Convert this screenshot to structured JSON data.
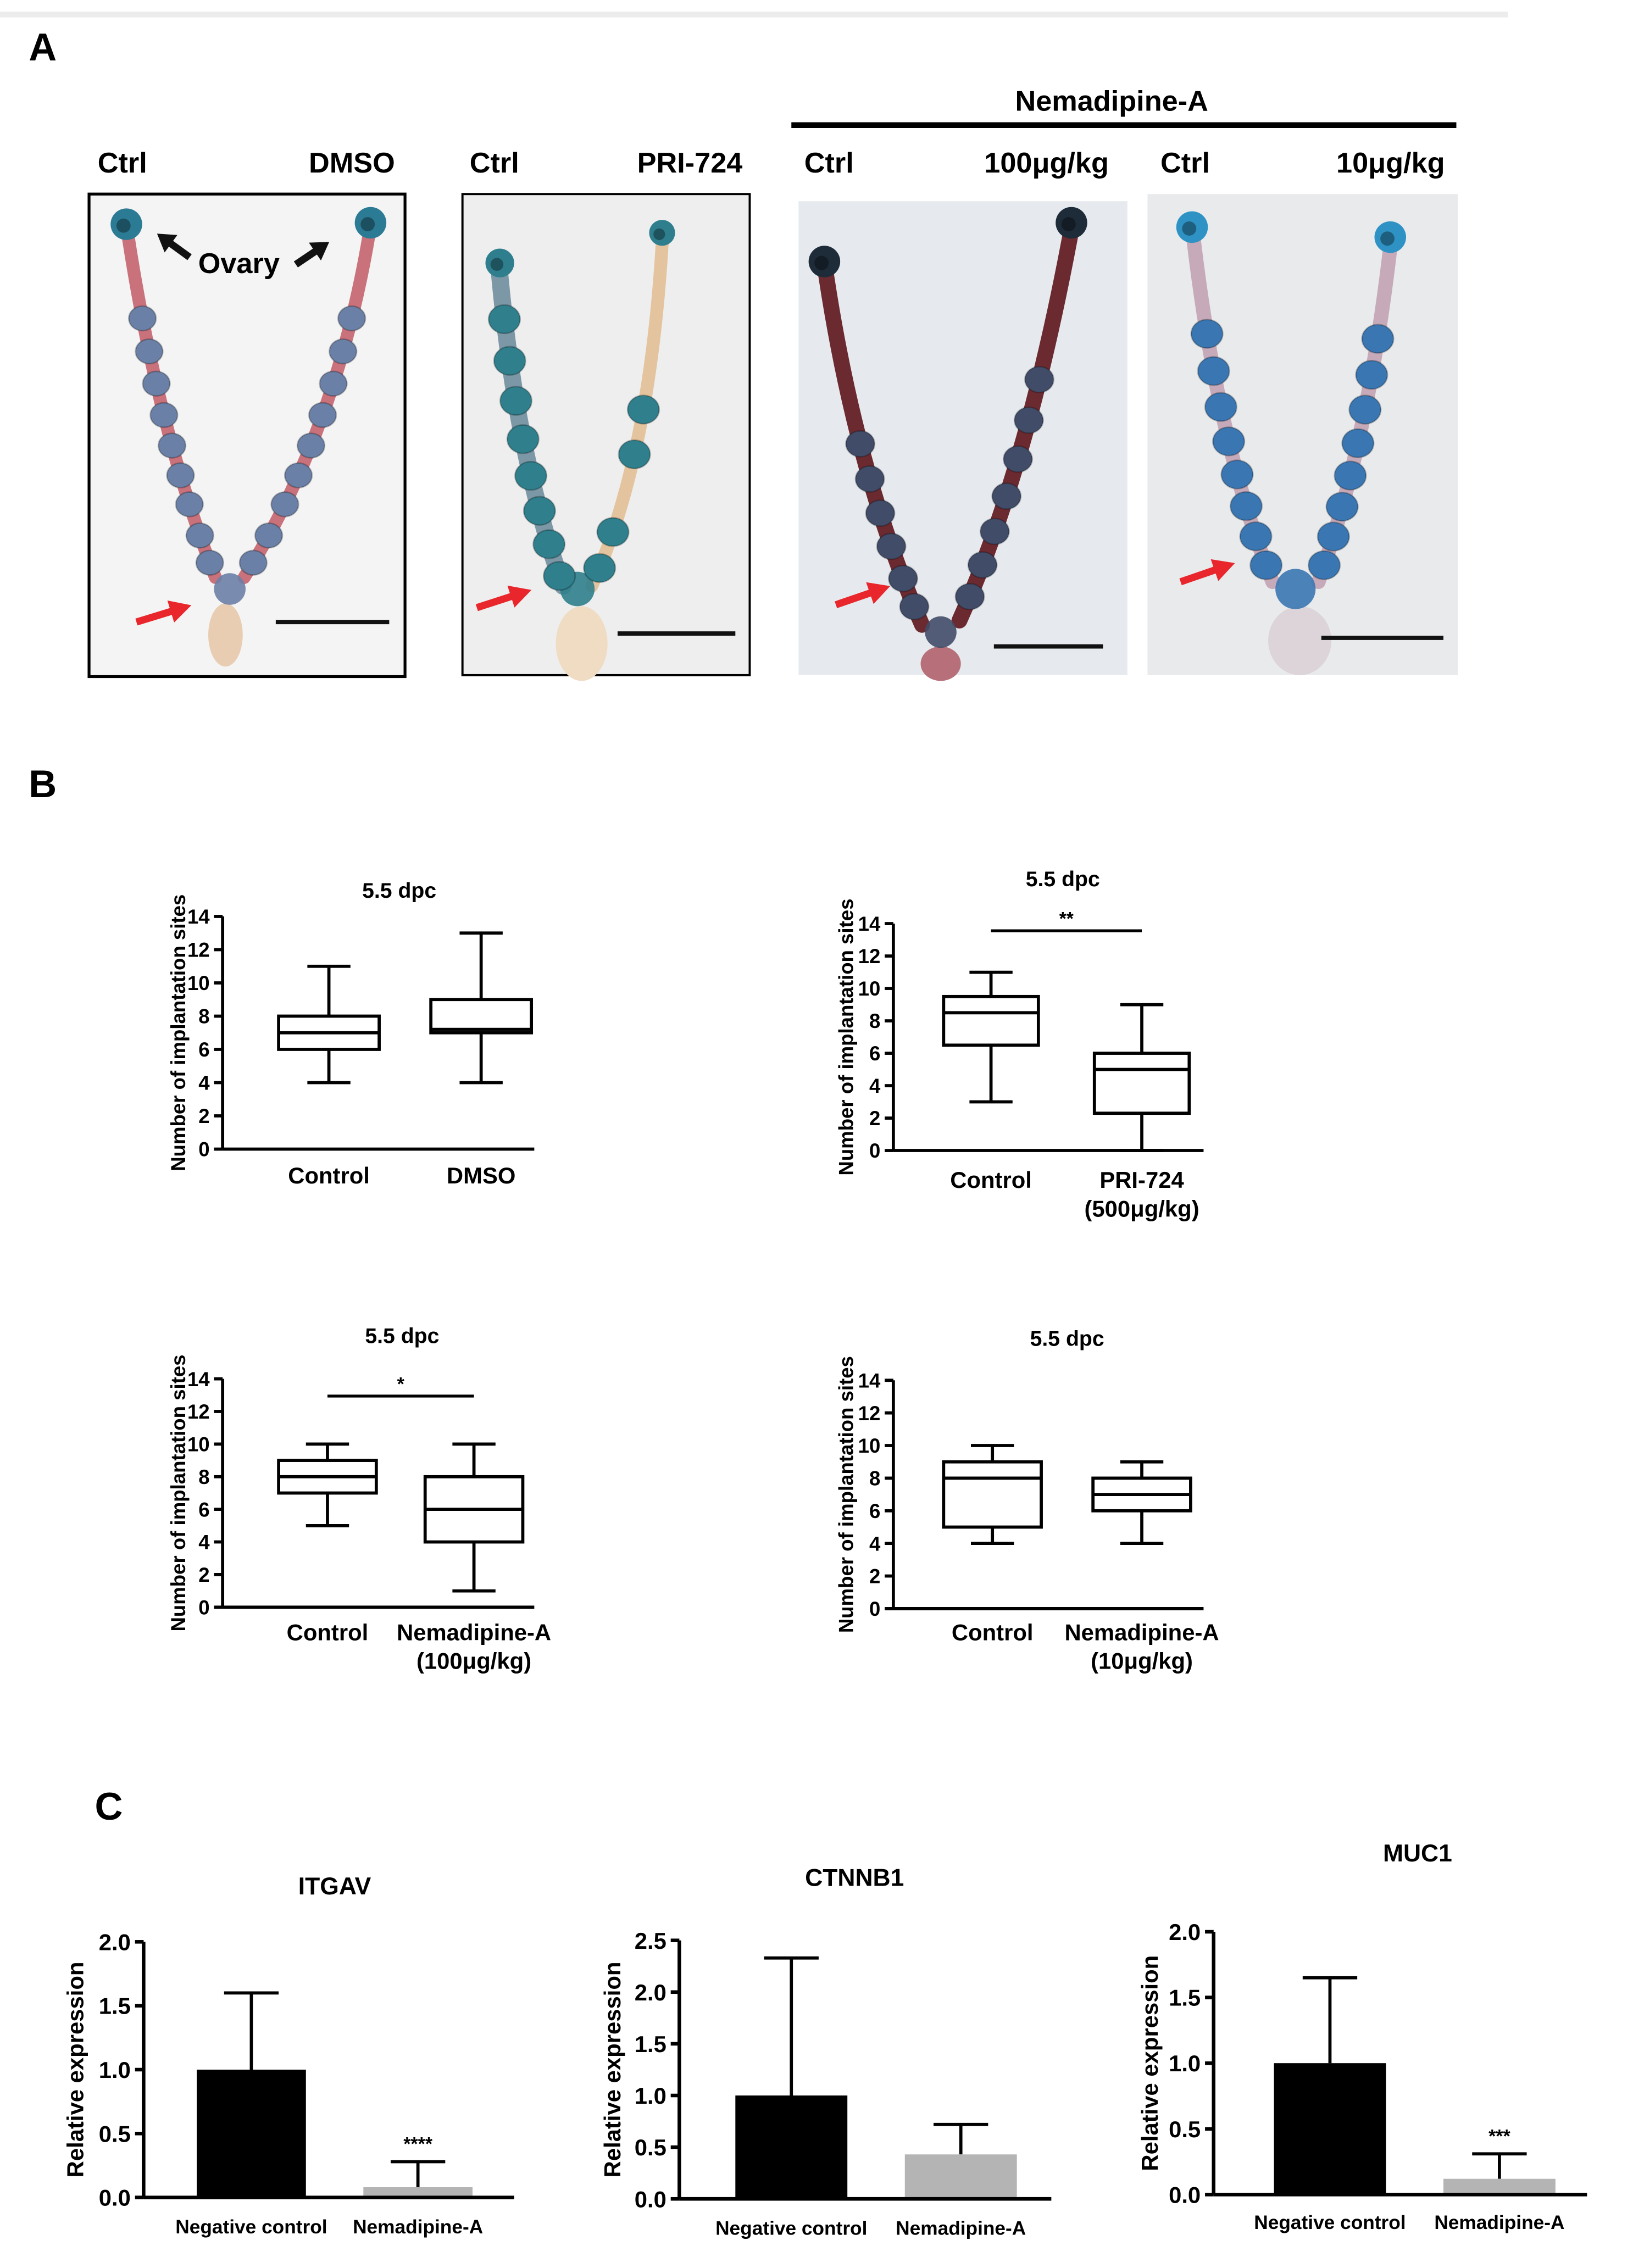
{
  "panels": {
    "a": {
      "letter": "A",
      "group_label": "Nemadipine-A",
      "photos": [
        {
          "left_label": "Ctrl",
          "right_label": "DMSO",
          "annotation": "Ovary"
        },
        {
          "left_label": "Ctrl",
          "right_label": "PRI-724"
        },
        {
          "left_label": "Ctrl",
          "right_label": "100μg/kg"
        },
        {
          "left_label": "Ctrl",
          "right_label": "10μg/kg"
        }
      ]
    },
    "b": {
      "letter": "B"
    },
    "c": {
      "letter": "C"
    }
  },
  "icons": {
    "ovary_pointer": "arrow-icon",
    "implantation_pointer": "red-arrow-icon"
  },
  "colors": {
    "pointer_arrow": "#e8262b",
    "control_bar": "#000000",
    "treatment_bar": "#b4b4b4"
  },
  "chart_data": [
    {
      "type": "box",
      "title": "5.5 dpc",
      "ylabel": "Number of implantation sites",
      "ylim": [
        0,
        14
      ],
      "yticks": [
        "0",
        "2",
        "4",
        "6",
        "8",
        "10",
        "12",
        "14"
      ],
      "categories": [
        [
          "Control"
        ],
        [
          "DMSO"
        ]
      ],
      "boxes": [
        {
          "min": 4,
          "q1": 6,
          "median": 7,
          "q3": 8,
          "max": 11
        },
        {
          "min": 4,
          "q1": 7,
          "median": 7.2,
          "q3": 9,
          "max": 13
        }
      ],
      "significance": null,
      "grid": false
    },
    {
      "type": "box",
      "title": "5.5 dpc",
      "ylabel": "Number of implantation sites",
      "ylim": [
        0,
        14
      ],
      "yticks": [
        "0",
        "2",
        "4",
        "6",
        "8",
        "10",
        "12",
        "14"
      ],
      "categories": [
        [
          "Control"
        ],
        [
          "PRI-724",
          "(500μg/kg)"
        ]
      ],
      "boxes": [
        {
          "min": 3,
          "q1": 6.5,
          "median": 8.5,
          "q3": 9.5,
          "max": 11
        },
        {
          "min": 0,
          "q1": 2.3,
          "median": 5,
          "q3": 6,
          "max": 9
        }
      ],
      "significance": {
        "label": "**",
        "between": [
          0,
          1
        ]
      },
      "grid": false
    },
    {
      "type": "box",
      "title": "5.5 dpc",
      "ylabel": "Number of implantation sites",
      "ylim": [
        0,
        14
      ],
      "yticks": [
        "0",
        "2",
        "4",
        "6",
        "8",
        "10",
        "12",
        "14"
      ],
      "categories": [
        [
          "Control"
        ],
        [
          "Nemadipine-A",
          "(100μg/kg)"
        ]
      ],
      "boxes": [
        {
          "min": 5,
          "q1": 7,
          "median": 8,
          "q3": 9,
          "max": 10
        },
        {
          "min": 1,
          "q1": 4,
          "median": 6,
          "q3": 8,
          "max": 10
        }
      ],
      "significance": {
        "label": "*",
        "between": [
          0,
          1
        ]
      },
      "grid": false
    },
    {
      "type": "box",
      "title": "5.5 dpc",
      "ylabel": "Number of implantation sites",
      "ylim": [
        0,
        14
      ],
      "yticks": [
        "0",
        "2",
        "4",
        "6",
        "8",
        "10",
        "12",
        "14"
      ],
      "categories": [
        [
          "Control"
        ],
        [
          "Nemadipine-A",
          "(10μg/kg)"
        ]
      ],
      "boxes": [
        {
          "min": 4,
          "q1": 5,
          "median": 8,
          "q3": 9,
          "max": 10
        },
        {
          "min": 4,
          "q1": 6,
          "median": 7,
          "q3": 8,
          "max": 9
        }
      ],
      "significance": null,
      "grid": false
    },
    {
      "type": "bar",
      "title": "ITGAV",
      "ylabel": "Relative expression",
      "ylim": [
        0,
        2.0
      ],
      "yticks": [
        "0.0",
        "0.5",
        "1.0",
        "1.5",
        "2.0"
      ],
      "categories": [
        "Negative control",
        "Nemadipine-A"
      ],
      "values": [
        1.0,
        0.08
      ],
      "error_upper": [
        0.6,
        0.2
      ],
      "significance": [
        null,
        "****"
      ],
      "grid": false
    },
    {
      "type": "bar",
      "title": "CTNNB1",
      "ylabel": "Relative expression",
      "ylim": [
        0,
        2.5
      ],
      "yticks": [
        "0.0",
        "0.5",
        "1.0",
        "1.5",
        "2.0",
        "2.5"
      ],
      "categories": [
        "Negative control",
        "Nemadipine-A"
      ],
      "values": [
        1.0,
        0.43
      ],
      "error_upper": [
        1.33,
        0.29
      ],
      "significance": [
        null,
        null
      ],
      "grid": false
    },
    {
      "type": "bar",
      "title": "MUC1",
      "ylabel": "Relative expression",
      "ylim": [
        0,
        2.0
      ],
      "yticks": [
        "0.0",
        "0.5",
        "1.0",
        "1.5",
        "2.0"
      ],
      "categories": [
        "Negative control",
        "Nemadipine-A"
      ],
      "values": [
        1.0,
        0.12
      ],
      "error_upper": [
        0.65,
        0.19
      ],
      "significance": [
        null,
        "***"
      ],
      "grid": false
    }
  ]
}
